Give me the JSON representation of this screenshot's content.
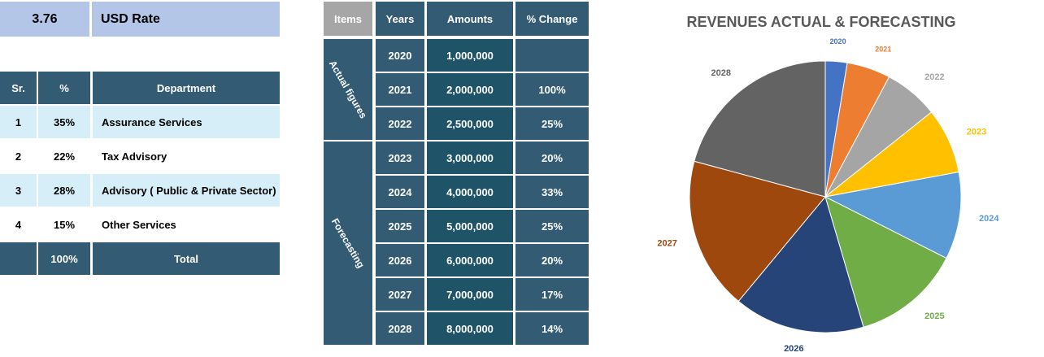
{
  "usd": {
    "value": "3.76",
    "label": "USD Rate"
  },
  "departments": {
    "header": [
      "Sr.",
      "%",
      "Department"
    ],
    "rows": [
      [
        "1",
        "35%",
        "Assurance Services"
      ],
      [
        "2",
        "22%",
        "Tax Advisory"
      ],
      [
        "3",
        "28%",
        "Advisory ( Public & Private Sector)"
      ],
      [
        "4",
        "15%",
        "Other Services"
      ]
    ],
    "total": [
      null,
      "100%",
      "Total"
    ]
  },
  "revenues": {
    "header": [
      "Items",
      "Years",
      "Amounts",
      "% Change"
    ],
    "groups": [
      {
        "label": "Actual figures",
        "rows": [
          [
            "2020",
            "1,000,000",
            null
          ],
          [
            "2021",
            "2,000,000",
            "100%"
          ],
          [
            "2022",
            "2,500,000",
            "25%"
          ]
        ]
      },
      {
        "label": "Forecasting",
        "rows": [
          [
            "2023",
            "3,000,000",
            "20%"
          ],
          [
            "2024",
            "4,000,000",
            "33%"
          ],
          [
            "2025",
            "5,000,000",
            "25%"
          ],
          [
            "2026",
            "6,000,000",
            "20%"
          ],
          [
            "2027",
            "7,000,000",
            "17%"
          ],
          [
            "2028",
            "8,000,000",
            "14%"
          ]
        ]
      }
    ]
  },
  "chart_data": {
    "type": "pie",
    "title": "REVENUES ACTUAL & FORECASTING",
    "categories": [
      "2020",
      "2021",
      "2022",
      "2023",
      "2024",
      "2025",
      "2026",
      "2027",
      "2028"
    ],
    "values": [
      1000000,
      2000000,
      2500000,
      3000000,
      4000000,
      5000000,
      6000000,
      7000000,
      8000000
    ],
    "colors": [
      "#4472c4",
      "#ed7d31",
      "#a5a5a5",
      "#ffc000",
      "#5b9bd5",
      "#70ad47",
      "#264478",
      "#9e480e",
      "#636363"
    ]
  }
}
